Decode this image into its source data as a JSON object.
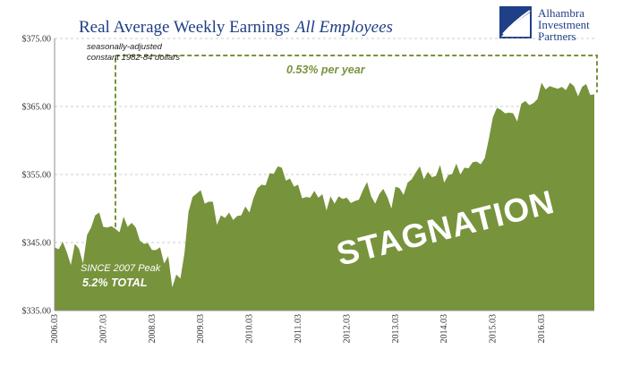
{
  "chart_data": {
    "type": "area",
    "title_main": "Real Average Weekly Earnings",
    "title_italic": "All Employees",
    "y_ticks": [
      "$335.00",
      "$345.00",
      "$355.00",
      "$365.00",
      "$375.00"
    ],
    "y_tick_values": [
      335,
      345,
      355,
      365,
      375
    ],
    "ylim": [
      335,
      375
    ],
    "x_ticks": [
      "2006.03",
      "2007.03",
      "2008.03",
      "2009.03",
      "2010.03",
      "2011.03",
      "2012.03",
      "2013.03",
      "2014.03",
      "2015.03",
      "2016.03"
    ],
    "x_tick_index": [
      0,
      12,
      24,
      36,
      48,
      60,
      72,
      84,
      96,
      108,
      120
    ],
    "grid": true,
    "series": [
      {
        "color": "#77933c",
        "start": "2006-03",
        "frequency": "monthly",
        "values": [
          344.3,
          344.0,
          345.1,
          343.6,
          341.7,
          344.8,
          344.1,
          341.9,
          346.1,
          347.2,
          349.0,
          349.4,
          347.3,
          347.2,
          347.4,
          347.0,
          346.5,
          348.8,
          347.3,
          347.9,
          347.2,
          345.3,
          344.8,
          344.9,
          343.9,
          343.9,
          344.3,
          341.9,
          343.0,
          338.4,
          340.3,
          339.7,
          343.4,
          349.5,
          351.7,
          352.2,
          352.7,
          350.7,
          351.0,
          351.0,
          347.6,
          349.0,
          348.6,
          349.4,
          348.3,
          348.9,
          349.0,
          350.3,
          349.4,
          351.5,
          353.0,
          353.5,
          353.4,
          355.2,
          355.1,
          356.2,
          356.0,
          354.1,
          354.4,
          353.2,
          353.5,
          351.5,
          351.7,
          351.6,
          352.6,
          351.6,
          352.1,
          349.7,
          351.8,
          350.7,
          351.8,
          351.4,
          351.6,
          350.8,
          351.1,
          351.3,
          352.7,
          353.9,
          351.8,
          350.7,
          352.1,
          352.9,
          351.7,
          350.0,
          353.2,
          353.0,
          352.0,
          353.8,
          354.3,
          355.3,
          356.2,
          354.3,
          355.4,
          354.6,
          354.8,
          356.4,
          353.8,
          354.9,
          355.1,
          356.6,
          355.0,
          356.0,
          355.9,
          356.8,
          356.9,
          356.5,
          357.4,
          360.2,
          363.4,
          364.8,
          364.5,
          364.0,
          364.1,
          364.0,
          362.8,
          365.4,
          365.8,
          365.2,
          365.5,
          366.1,
          368.5,
          367.5,
          368.0,
          367.8,
          367.6,
          367.9,
          367.4,
          368.5,
          368.0,
          366.5,
          367.9,
          368.3,
          366.7,
          366.8
        ]
      }
    ],
    "annotations": {
      "note_line1": "seasonally-adjusted",
      "note_line2": "constant 1982-84 dollars",
      "rate": "0.53% per year",
      "peak_line1": "SINCE 2007 Peak",
      "peak_line2": "5.2% TOTAL",
      "stagnation": "STAGNATION",
      "bracket_start_index": 15,
      "bracket_end_index": 133,
      "bracket_level": 372.5
    }
  },
  "logo": {
    "line1": "Alhambra",
    "line2": "Investment",
    "line3": "Partners"
  },
  "colors": {
    "area": "#77933c",
    "title": "#1f3f86",
    "bracket": "#77933c",
    "grid": "#bfbfbf",
    "axis": "#8c8c8c"
  }
}
